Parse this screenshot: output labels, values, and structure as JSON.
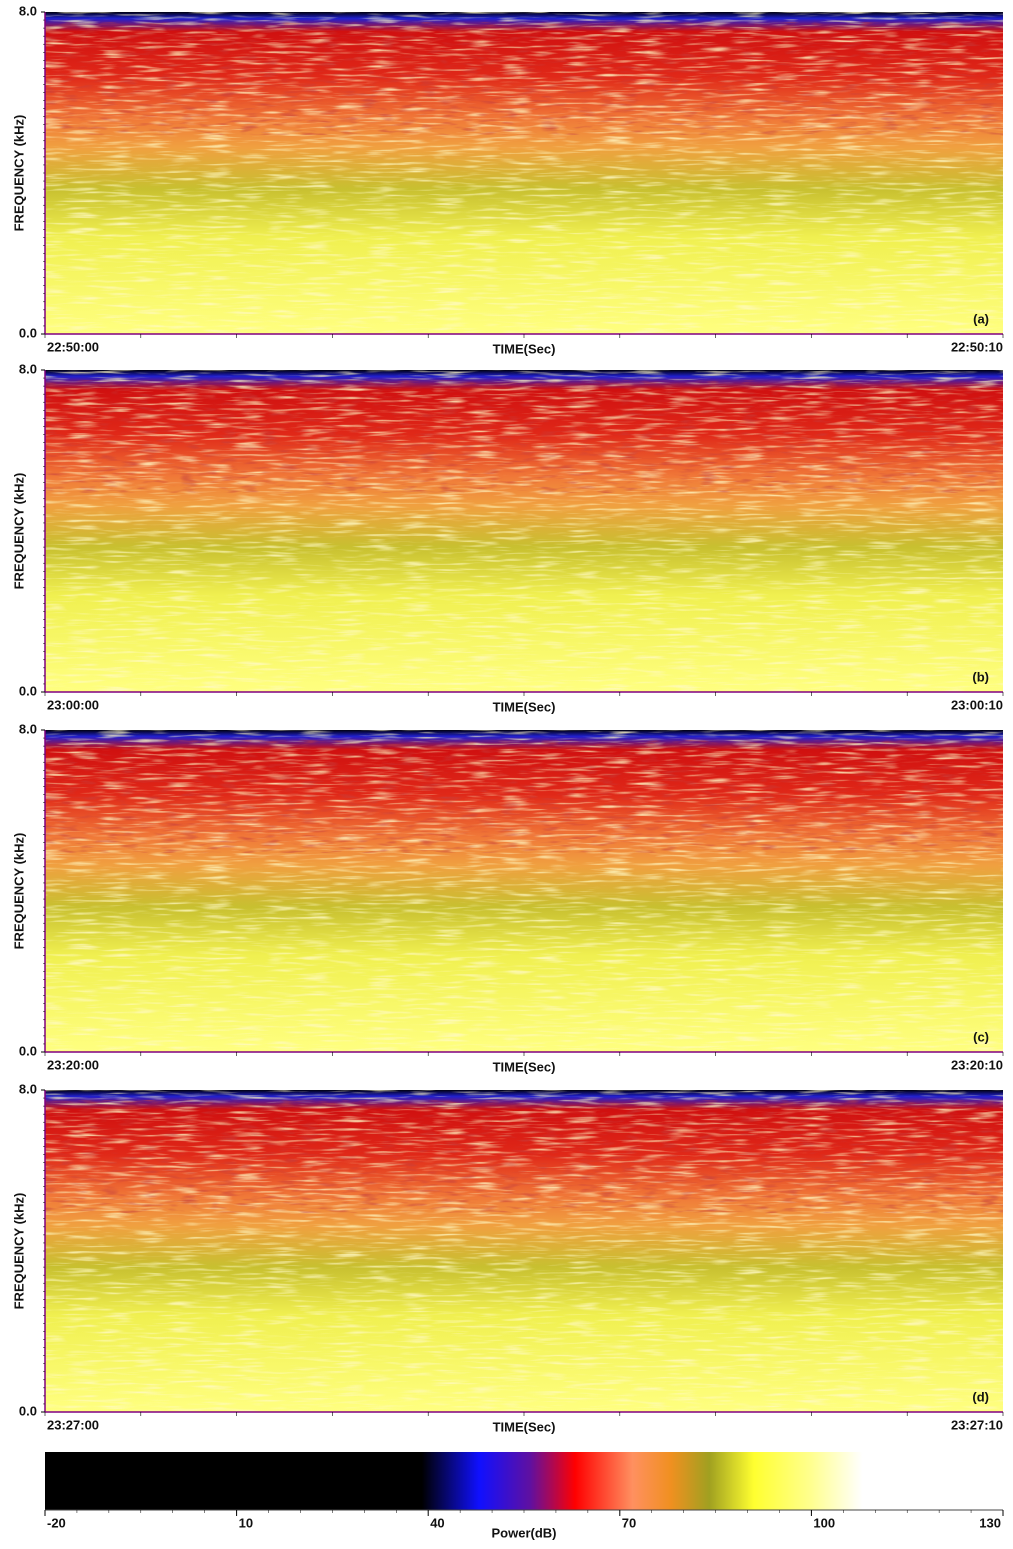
{
  "chart_data": [
    {
      "type": "spectrogram",
      "y_label": "FREQUENCY (kHz)",
      "x_label": "TIME(Sec)",
      "panel_label": "(a)",
      "xlim": [
        "22:50:00",
        "22:50:10"
      ],
      "ylim": [
        0,
        8
      ],
      "yticks": [
        {
          "value": 0,
          "label": "0.0"
        },
        {
          "value": 8,
          "label": "8.0"
        }
      ]
    },
    {
      "type": "spectrogram",
      "y_label": "FREQUENCY (kHz)",
      "x_label": "TIME(Sec)",
      "panel_label": "(b)",
      "xlim": [
        "23:00:00",
        "23:00:10"
      ],
      "ylim": [
        0,
        8
      ],
      "yticks": [
        {
          "value": 0,
          "label": "0.0"
        },
        {
          "value": 8,
          "label": "8.0"
        }
      ]
    },
    {
      "type": "spectrogram",
      "y_label": "FREQUENCY (kHz)",
      "x_label": "TIME(Sec)",
      "panel_label": "(c)",
      "xlim": [
        "23:20:00",
        "23:20:10"
      ],
      "ylim": [
        0,
        8
      ],
      "yticks": [
        {
          "value": 0,
          "label": "0.0"
        },
        {
          "value": 8,
          "label": "8.0"
        }
      ]
    },
    {
      "type": "spectrogram",
      "y_label": "FREQUENCY (kHz)",
      "x_label": "TIME(Sec)",
      "panel_label": "(d)",
      "xlim": [
        "23:27:00",
        "23:27:10"
      ],
      "ylim": [
        0,
        8
      ],
      "yticks": [
        {
          "value": 0,
          "label": "0.0"
        },
        {
          "value": 8,
          "label": "8.0"
        }
      ]
    },
    {
      "type": "colorbar",
      "x_label": "Power(dB)",
      "xlim": [
        -20,
        130
      ],
      "xticks": [
        -20,
        10,
        40,
        70,
        100,
        130
      ],
      "colorscale": [
        [
          -20,
          "#000000"
        ],
        [
          39,
          "#000000"
        ],
        [
          48,
          "#1010ff"
        ],
        [
          56,
          "#6010a0"
        ],
        [
          63,
          "#ff0000"
        ],
        [
          72,
          "#ff9060"
        ],
        [
          78,
          "#f09020"
        ],
        [
          84,
          "#a0a020"
        ],
        [
          91,
          "#ffff30"
        ],
        [
          100,
          "#ffff90"
        ],
        [
          108,
          "#ffffff"
        ],
        [
          130,
          "#ffffff"
        ]
      ]
    }
  ]
}
